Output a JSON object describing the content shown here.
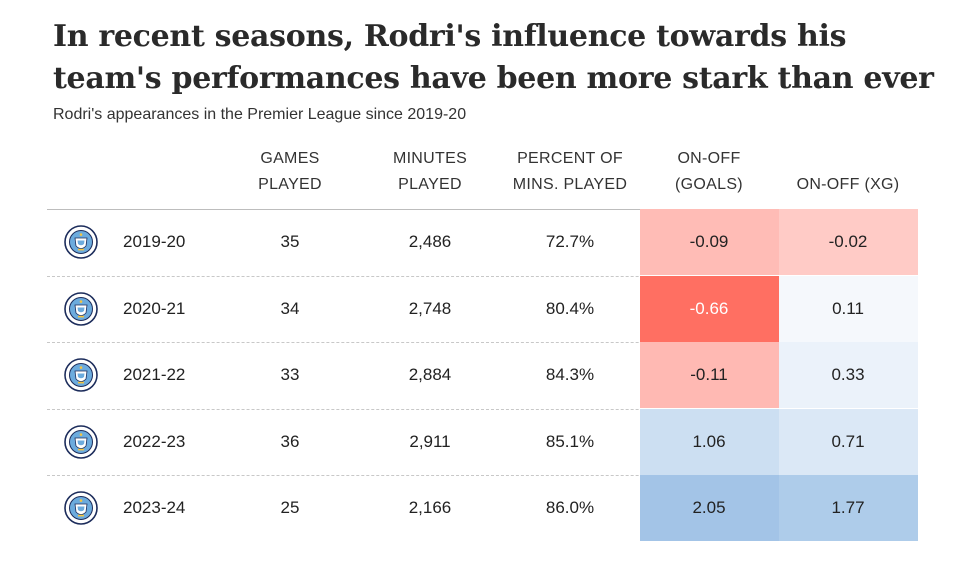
{
  "title": "In recent seasons, Rodri's influence towards his team's performances have been more stark than ever",
  "subtitle": "Rodri's appearances in the Premier League since 2019-20",
  "columns": [
    {
      "key": "games",
      "lines": [
        "GAMES",
        "PLAYED"
      ]
    },
    {
      "key": "minutes",
      "lines": [
        "MINUTES",
        "PLAYED"
      ]
    },
    {
      "key": "pct",
      "lines": [
        "PERCENT OF",
        "MINS. PLAYED"
      ]
    },
    {
      "key": "onoff_goals",
      "lines": [
        "ON-OFF",
        "(GOALS)"
      ]
    },
    {
      "key": "onoff_xg",
      "lines": [
        "ON-OFF (XG)"
      ]
    }
  ],
  "badge_icon": "manchester-city-crest-icon",
  "colors": {
    "negative": "#ff6f62",
    "positive": "#9fc2e6",
    "text_light": "#ffffff"
  },
  "chart_data": {
    "type": "table",
    "title": "In recent seasons, Rodri's influence towards his team's performances have been more stark than ever",
    "subtitle": "Rodri's appearances in the Premier League since 2019-20",
    "headers": [
      "GAMES PLAYED",
      "MINUTES PLAYED",
      "PERCENT OF MINS. PLAYED",
      "ON-OFF (GOALS)",
      "ON-OFF (XG)"
    ],
    "rows": [
      {
        "season": "2019-20",
        "games": "35",
        "minutes": "2,486",
        "pct": "72.7%",
        "onoff_goals": "-0.09",
        "onoff_xg": "-0.02",
        "onoff_goals_value": -0.09,
        "onoff_xg_value": -0.02
      },
      {
        "season": "2020-21",
        "games": "34",
        "minutes": "2,748",
        "pct": "80.4%",
        "onoff_goals": "-0.66",
        "onoff_xg": "0.11",
        "onoff_goals_value": -0.66,
        "onoff_xg_value": 0.11
      },
      {
        "season": "2021-22",
        "games": "33",
        "minutes": "2,884",
        "pct": "84.3%",
        "onoff_goals": "-0.11",
        "onoff_xg": "0.33",
        "onoff_goals_value": -0.11,
        "onoff_xg_value": 0.33
      },
      {
        "season": "2022-23",
        "games": "36",
        "minutes": "2,911",
        "pct": "85.1%",
        "onoff_goals": "1.06",
        "onoff_xg": "0.71",
        "onoff_goals_value": 1.06,
        "onoff_xg_value": 0.71
      },
      {
        "season": "2023-24",
        "games": "25",
        "minutes": "2,166",
        "pct": "86.0%",
        "onoff_goals": "2.05",
        "onoff_xg": "1.77",
        "onoff_goals_value": 2.05,
        "onoff_xg_value": 1.77
      }
    ]
  }
}
